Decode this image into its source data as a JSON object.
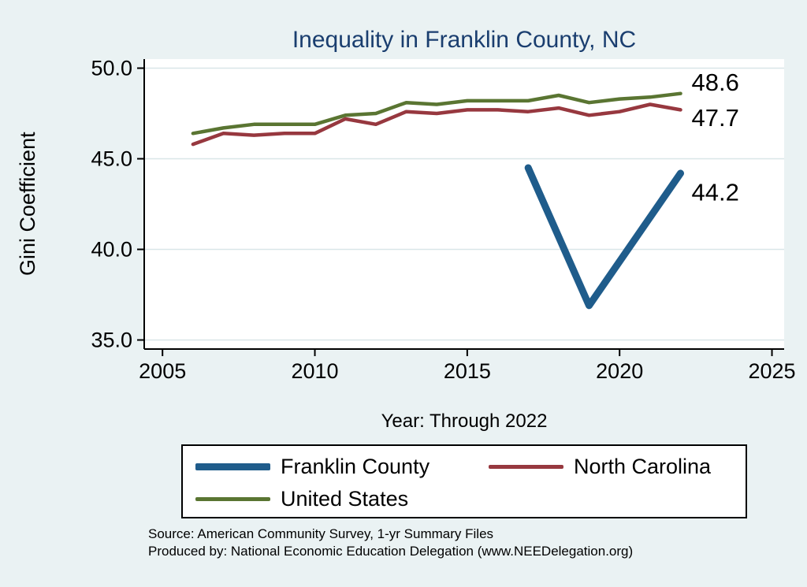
{
  "page": {
    "background": "#eaf2f3"
  },
  "chart_data": {
    "type": "line",
    "title": "Inequality in Franklin County, NC",
    "title_color": "#1a3e6f",
    "xlabel": "Year: Through 2022",
    "ylabel": "Gini Coefficient",
    "xlim": [
      2004.4,
      2025.4
    ],
    "ylim": [
      34.5,
      50.5
    ],
    "xticks": [
      2005,
      2010,
      2015,
      2020,
      2025
    ],
    "xtick_labels": [
      "2005",
      "2010",
      "2015",
      "2020",
      "2025"
    ],
    "yticks": [
      35,
      40,
      45,
      50
    ],
    "ytick_labels": [
      "35.0",
      "40.0",
      "45.0",
      "50.0"
    ],
    "grid": "horizontal",
    "grid_color": "#d9e6e8",
    "axis_color": "#000000",
    "plot_bg": "#ffffff",
    "legend_position": "bottom",
    "series": [
      {
        "name": "Franklin County",
        "color": "#1f5c8b",
        "width": 9,
        "x": [
          2017,
          2019,
          2022
        ],
        "y": [
          44.5,
          36.9,
          44.2
        ],
        "end_label": "44.2",
        "end_label_dy": 24
      },
      {
        "name": "North Carolina",
        "color": "#97383f",
        "width": 4.5,
        "x": [
          2006,
          2007,
          2008,
          2009,
          2010,
          2011,
          2012,
          2013,
          2014,
          2015,
          2016,
          2017,
          2018,
          2019,
          2020,
          2021,
          2022
        ],
        "y": [
          45.8,
          46.4,
          46.3,
          46.4,
          46.4,
          47.2,
          46.9,
          47.6,
          47.5,
          47.7,
          47.7,
          47.6,
          47.8,
          47.4,
          47.6,
          48.0,
          47.7
        ],
        "end_label": "47.7",
        "end_label_dy": 10
      },
      {
        "name": "United States",
        "color": "#5a7532",
        "width": 4.5,
        "x": [
          2006,
          2007,
          2008,
          2009,
          2010,
          2011,
          2012,
          2013,
          2014,
          2015,
          2016,
          2017,
          2018,
          2019,
          2020,
          2021,
          2022
        ],
        "y": [
          46.4,
          46.7,
          46.9,
          46.9,
          46.9,
          47.4,
          47.5,
          48.1,
          48.0,
          48.2,
          48.2,
          48.2,
          48.5,
          48.1,
          48.3,
          48.4,
          48.6
        ],
        "end_label": "48.6",
        "end_label_dy": -14
      }
    ]
  },
  "footer": {
    "source_line1": "Source: American Community Survey, 1-yr Summary Files",
    "source_line2": "Produced by: National Economic Education Delegation (www.NEEDelegation.org)"
  }
}
